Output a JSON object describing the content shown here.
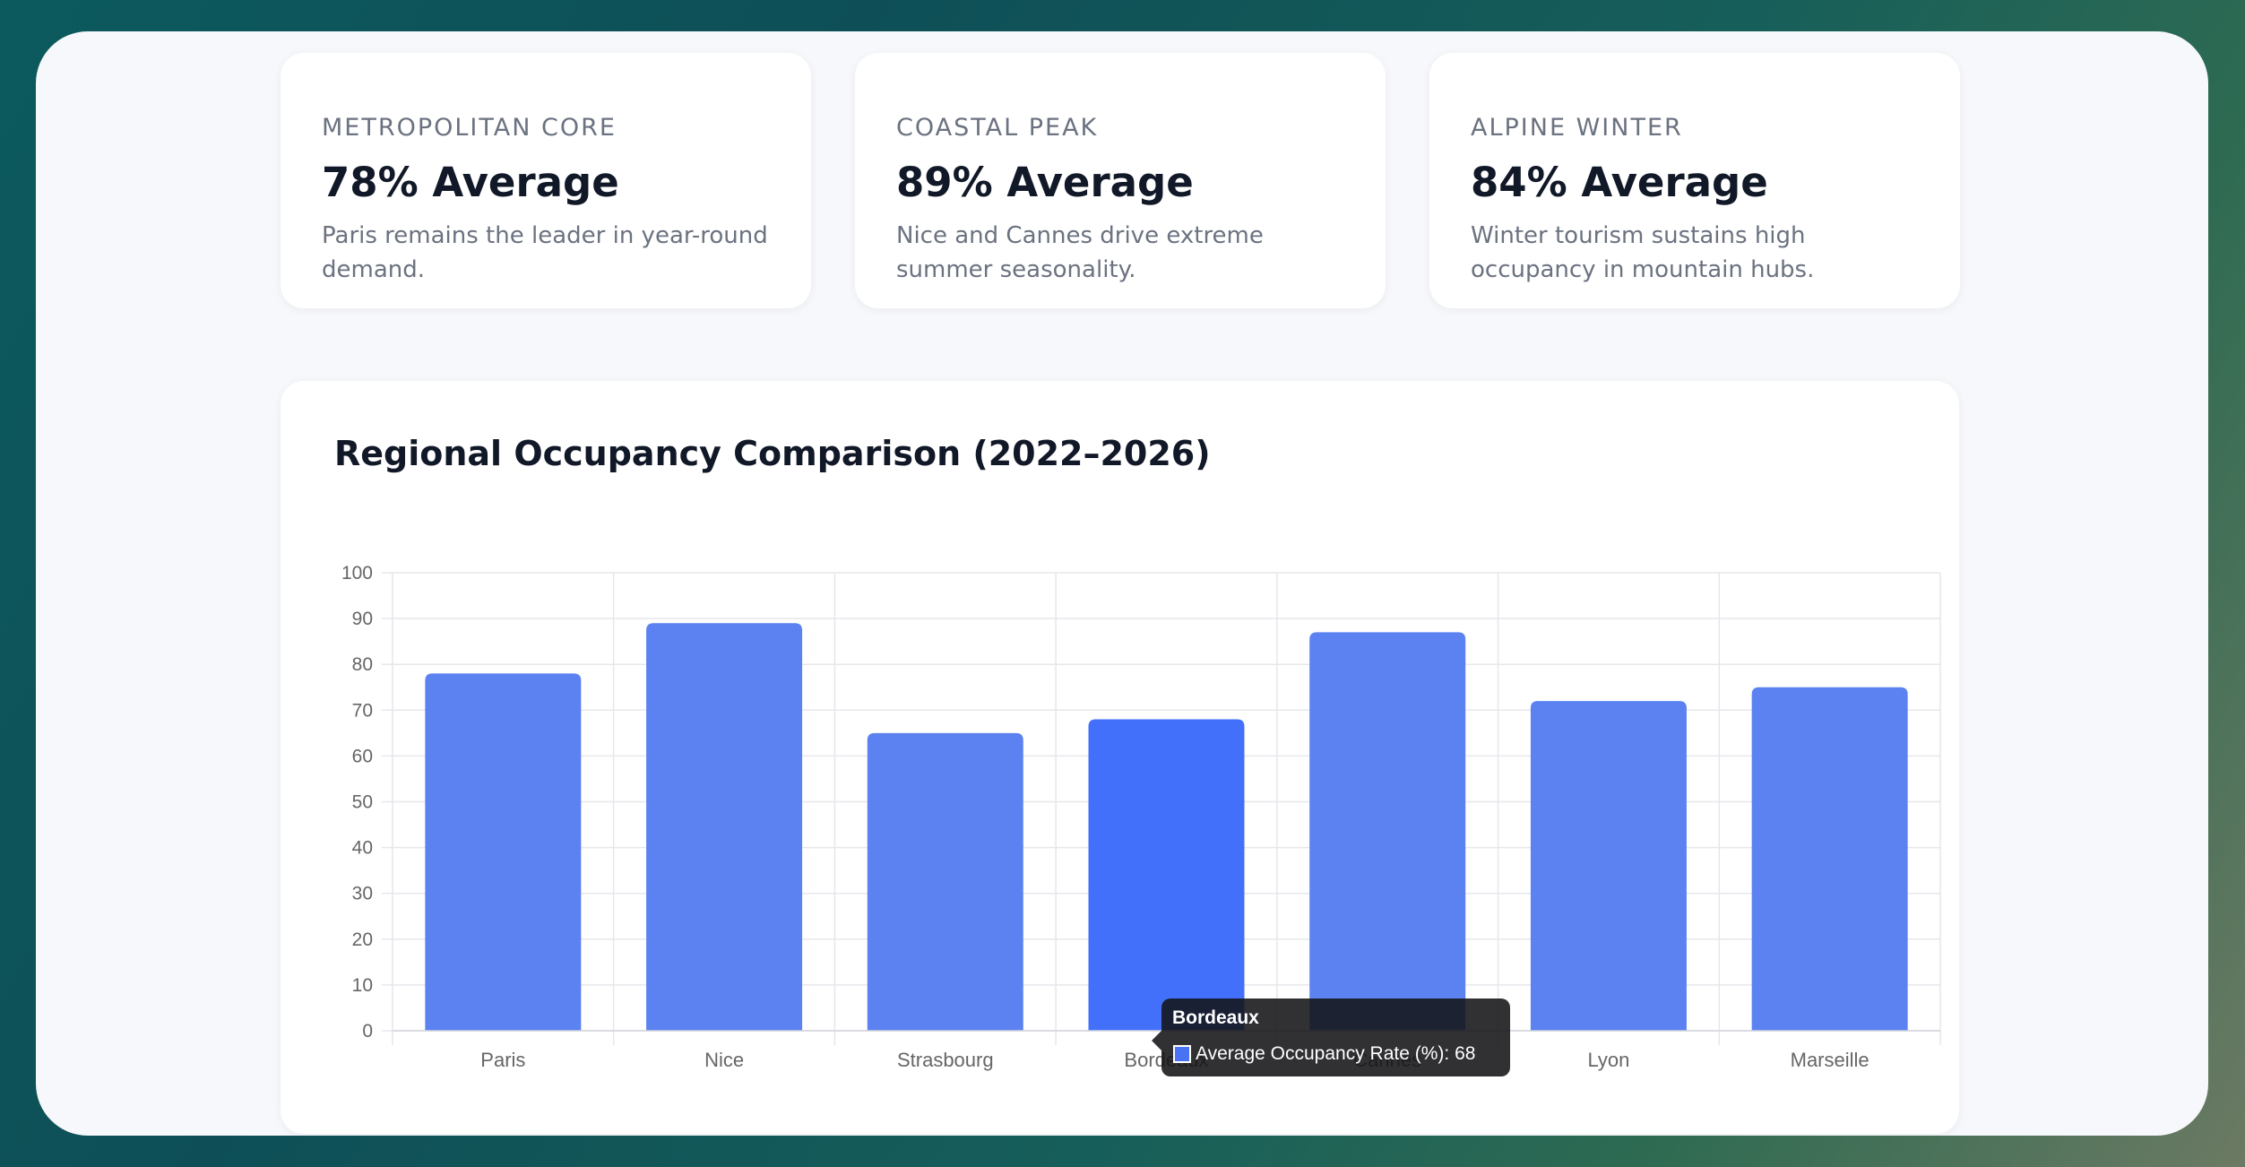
{
  "cards": [
    {
      "label": "METROPOLITAN CORE",
      "value": "78% Average",
      "desc": "Paris remains the leader in year-round demand."
    },
    {
      "label": "COASTAL PEAK",
      "value": "89% Average",
      "desc": "Nice and Cannes drive extreme summer seasonality."
    },
    {
      "label": "ALPINE WINTER",
      "value": "84% Average",
      "desc": "Winter tourism sustains high occupancy in mountain hubs."
    }
  ],
  "tooltip": {
    "title": "Bordeaux",
    "body": "Average Occupancy Rate (%): 68"
  },
  "chart_data": {
    "type": "bar",
    "title": "Regional Occupancy Comparison (2022–2026)",
    "categories": [
      "Paris",
      "Nice",
      "Strasbourg",
      "Bordeaux",
      "Cannes",
      "Lyon",
      "Marseille"
    ],
    "series": [
      {
        "name": "Average Occupancy Rate (%)",
        "values": [
          78,
          89,
          65,
          68,
          87,
          72,
          75
        ]
      }
    ],
    "ylim": [
      0,
      100
    ],
    "yticks": [
      0,
      10,
      20,
      30,
      40,
      50,
      60,
      70,
      80,
      90,
      100
    ],
    "grid": true,
    "highlighted_category": "Bordeaux",
    "colors": {
      "bar": "#5b82f0",
      "bar_highlight": "#4270fa",
      "grid": "#e5e7eb",
      "tick_text": "#666666"
    }
  }
}
